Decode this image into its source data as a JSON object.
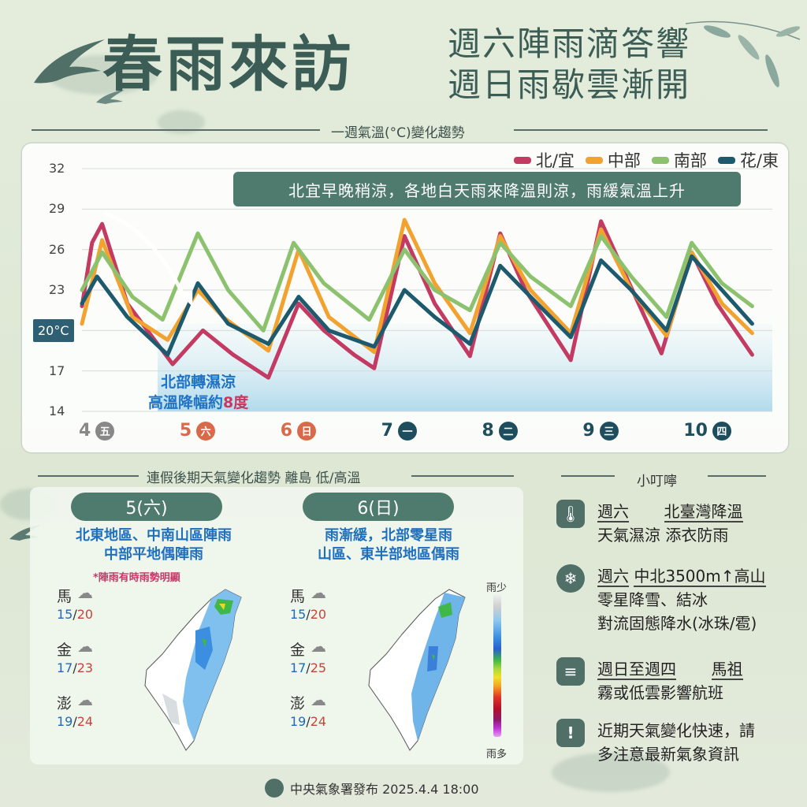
{
  "header": {
    "title": "春雨來訪",
    "subtitle_line1": "週六陣雨滴答響",
    "subtitle_line2": "週日雨歇雲漸開"
  },
  "chart_section_title": "一週氣溫(°C)變化趨勢",
  "chart_data": {
    "type": "line",
    "title": "一週氣溫(°C)變化趨勢",
    "ylim": [
      14,
      32
    ],
    "yticks": [
      "32",
      "29",
      "26",
      "23",
      "20°C",
      "17",
      "14"
    ],
    "ytick_values": [
      32,
      29,
      26,
      23,
      20,
      17,
      14
    ],
    "x_day_labels": [
      {
        "day": "4",
        "weekday": "五",
        "color": "#888888",
        "index": 0
      },
      {
        "day": "5",
        "weekday": "六",
        "color": "#d86a4a",
        "index": 1
      },
      {
        "day": "6",
        "weekday": "日",
        "color": "#d86a4a",
        "index": 2
      },
      {
        "day": "7",
        "weekday": "一",
        "color": "#1e4e5e",
        "index": 3
      },
      {
        "day": "8",
        "weekday": "二",
        "color": "#1e4e5e",
        "index": 4
      },
      {
        "day": "9",
        "weekday": "三",
        "color": "#1e4e5e",
        "index": 5
      },
      {
        "day": "10",
        "weekday": "四",
        "color": "#1e4e5e",
        "index": 6
      }
    ],
    "x_range": [
      0,
      6.85
    ],
    "grid": true,
    "legend_placement": "top-right",
    "series": [
      {
        "name": "北/宜",
        "color": "#c33a62",
        "points": [
          [
            0,
            21.8
          ],
          [
            0.1,
            26.5
          ],
          [
            0.2,
            27.9
          ],
          [
            0.45,
            22.0
          ],
          [
            0.75,
            19.0
          ],
          [
            0.9,
            17.5
          ],
          [
            1.2,
            20.0
          ],
          [
            1.5,
            18.2
          ],
          [
            1.85,
            16.5
          ],
          [
            2.15,
            22.0
          ],
          [
            2.4,
            20.0
          ],
          [
            2.7,
            18.2
          ],
          [
            2.9,
            17.2
          ],
          [
            3.2,
            27.0
          ],
          [
            3.5,
            22.0
          ],
          [
            3.85,
            18.1
          ],
          [
            4.15,
            27.2
          ],
          [
            4.4,
            23.0
          ],
          [
            4.85,
            17.8
          ],
          [
            5.15,
            28.1
          ],
          [
            5.4,
            24.0
          ],
          [
            5.75,
            18.3
          ],
          [
            6.05,
            25.8
          ],
          [
            6.3,
            22.0
          ],
          [
            6.65,
            18.2
          ]
        ]
      },
      {
        "name": "中部",
        "color": "#f2a22e",
        "points": [
          [
            0,
            20.5
          ],
          [
            0.2,
            26.7
          ],
          [
            0.5,
            21.0
          ],
          [
            0.85,
            19.3
          ],
          [
            1.15,
            23.0
          ],
          [
            1.4,
            21.0
          ],
          [
            1.85,
            18.5
          ],
          [
            2.15,
            26.0
          ],
          [
            2.45,
            21.0
          ],
          [
            2.9,
            18.4
          ],
          [
            3.2,
            28.2
          ],
          [
            3.5,
            23.5
          ],
          [
            3.85,
            19.8
          ],
          [
            4.15,
            27.0
          ],
          [
            4.45,
            23.0
          ],
          [
            4.85,
            19.8
          ],
          [
            5.15,
            27.5
          ],
          [
            5.45,
            23.0
          ],
          [
            5.8,
            19.6
          ],
          [
            6.05,
            25.8
          ],
          [
            6.35,
            22.0
          ],
          [
            6.65,
            19.8
          ]
        ]
      },
      {
        "name": "南部",
        "color": "#8cc26e",
        "points": [
          [
            0,
            23.0
          ],
          [
            0.2,
            25.8
          ],
          [
            0.5,
            22.5
          ],
          [
            0.8,
            20.8
          ],
          [
            1.15,
            27.2
          ],
          [
            1.45,
            23.0
          ],
          [
            1.8,
            20.0
          ],
          [
            2.1,
            26.5
          ],
          [
            2.4,
            23.5
          ],
          [
            2.85,
            20.8
          ],
          [
            3.2,
            26.0
          ],
          [
            3.5,
            23.0
          ],
          [
            3.85,
            21.5
          ],
          [
            4.15,
            26.5
          ],
          [
            4.45,
            24.0
          ],
          [
            4.85,
            21.8
          ],
          [
            5.15,
            27.0
          ],
          [
            5.45,
            24.0
          ],
          [
            5.8,
            21.0
          ],
          [
            6.05,
            26.5
          ],
          [
            6.35,
            23.5
          ],
          [
            6.65,
            21.8
          ]
        ]
      },
      {
        "name": "花/東",
        "color": "#1e5a6e",
        "points": [
          [
            0,
            22.0
          ],
          [
            0.15,
            24.0
          ],
          [
            0.45,
            21.0
          ],
          [
            0.85,
            18.2
          ],
          [
            1.15,
            23.5
          ],
          [
            1.45,
            20.5
          ],
          [
            1.85,
            19.0
          ],
          [
            2.15,
            22.5
          ],
          [
            2.45,
            20.0
          ],
          [
            2.9,
            18.8
          ],
          [
            3.2,
            23.0
          ],
          [
            3.5,
            21.0
          ],
          [
            3.85,
            19.0
          ],
          [
            4.15,
            24.8
          ],
          [
            4.45,
            22.5
          ],
          [
            4.85,
            19.5
          ],
          [
            5.15,
            25.2
          ],
          [
            5.45,
            23.0
          ],
          [
            5.8,
            20.0
          ],
          [
            6.05,
            25.5
          ],
          [
            6.35,
            23.0
          ],
          [
            6.65,
            20.5
          ]
        ]
      }
    ],
    "annotation": "北宜早晚稍涼，各地白天雨來降溫則涼，雨緩氣溫上升",
    "note_line1": "北部轉濕涼",
    "note_line2_prefix": "高溫降幅約",
    "note_line2_highlight": "8度"
  },
  "lower_section_title": "連假後期天氣變化趨勢 離島 低/高溫",
  "day5": {
    "tab": "5(六)",
    "desc_line1": "北東地區、中南山區陣雨",
    "desc_line2": "中部平地偶陣雨",
    "note": "*陣雨有時雨勢明顯",
    "islands": [
      {
        "name": "馬",
        "low": "15",
        "high": "20",
        "icon": "rain-cloud-icon"
      },
      {
        "name": "金",
        "low": "17",
        "high": "23",
        "icon": "rain-cloud-icon"
      },
      {
        "name": "澎",
        "low": "19",
        "high": "24",
        "icon": "rain-cloud-icon"
      }
    ]
  },
  "day6": {
    "tab": "6(日)",
    "desc_line1": "雨漸緩，北部零星雨",
    "desc_line2": "山區、東半部地區偶雨",
    "islands": [
      {
        "name": "馬",
        "low": "15",
        "high": "20",
        "icon": "cloud-icon"
      },
      {
        "name": "金",
        "low": "17",
        "high": "25",
        "icon": "cloud-icon"
      },
      {
        "name": "澎",
        "low": "19",
        "high": "24",
        "icon": "cloud-icon"
      }
    ]
  },
  "rain_scale": {
    "top": "雨少",
    "bottom": "雨多"
  },
  "tips": {
    "title": "小叮嚀",
    "items": [
      {
        "icon": "thermometer-icon",
        "line1a": "週六",
        "line1b": "北臺灣降溫",
        "line2": "天氣濕涼 添衣防雨"
      },
      {
        "icon": "snow-icon",
        "line1a": "週六",
        "line1b": "中北3500m↑高山",
        "line2": "零星降雪、結冰",
        "line3": "對流固態降水(冰珠/雹)"
      },
      {
        "icon": "fog-icon",
        "line1a": "週日至週四",
        "line1b": "馬祖",
        "line2": "霧或低雲影響航班"
      },
      {
        "icon": "exclamation-icon",
        "line1a": "近期天氣變化快速，請",
        "line2": "多注意最新氣象資訊"
      }
    ]
  },
  "footer": {
    "text": "中央氣象署發布 2025.4.4 18:00"
  }
}
